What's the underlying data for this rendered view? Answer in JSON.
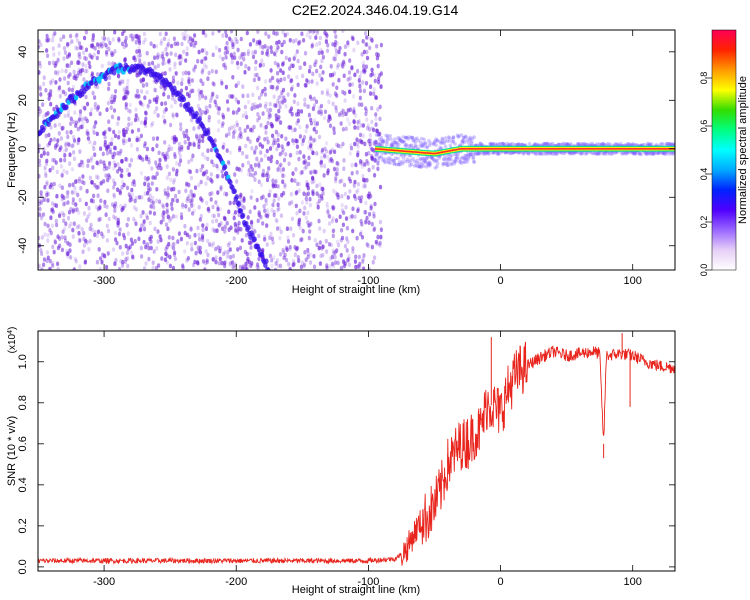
{
  "title": "C2E2.2024.346.04.19.G14",
  "colors": {
    "spectrogram_dots": "#6a1fd8",
    "carrier_core": "#ff2a2a",
    "snr_line": "#e8241c",
    "colorbar": [
      "#ffffff",
      "#e6cff7",
      "#9966ff",
      "#4f00ff",
      "#0022ff",
      "#00aaff",
      "#00ffff",
      "#00ff80",
      "#33dd00",
      "#ffff00",
      "#ff9900",
      "#ff2200",
      "#ff0055"
    ]
  },
  "chart_data": [
    {
      "type": "heatmap",
      "title": "C2E2.2024.346.04.19.G14",
      "xlabel": "Height of straight line (km)",
      "ylabel": "Frequency (Hz)",
      "xlim": [
        -350,
        132
      ],
      "ylim": [
        -50,
        49
      ],
      "xticks": [
        -300,
        -200,
        -100,
        0,
        100
      ],
      "yticks": [
        -40,
        -20,
        0,
        20,
        40
      ],
      "colorbar": {
        "label": "Normalized spectral amplitude",
        "range": [
          0,
          1
        ],
        "ticks": [
          "0.0",
          "0.2",
          "0.4",
          "0.6",
          "0.8"
        ],
        "tick_values": [
          0,
          0.2,
          0.4,
          0.6,
          0.8
        ]
      },
      "noise_region_x": [
        -350,
        -90
      ],
      "arc_track": {
        "name": "",
        "points": [
          [
            -350,
            7
          ],
          [
            -330,
            18
          ],
          [
            -310,
            27
          ],
          [
            -290,
            33
          ],
          [
            -270,
            33
          ],
          [
            -250,
            26
          ],
          [
            -230,
            13
          ],
          [
            -215,
            0
          ],
          [
            -205,
            -13
          ],
          [
            -195,
            -28
          ],
          [
            -185,
            -40
          ],
          [
            -175,
            -50
          ]
        ]
      },
      "carrier": {
        "name": "",
        "points": [
          [
            -95,
            0
          ],
          [
            -50,
            -2
          ],
          [
            -30,
            0
          ],
          [
            0,
            0
          ],
          [
            60,
            0
          ],
          [
            90,
            0
          ],
          [
            132,
            0
          ]
        ]
      }
    },
    {
      "type": "line",
      "xlabel": "Height of straight line (km)",
      "ylabel": "SNR (10 * v/v)",
      "yscale_label": "(x10",
      "yscale_exponent": "4",
      "xlim": [
        -350,
        132
      ],
      "ylim": [
        -0.02,
        1.15
      ],
      "xticks": [
        -300,
        -200,
        -100,
        0,
        100
      ],
      "yticks": [
        0.0,
        0.2,
        0.4,
        0.6,
        0.8,
        1.0
      ],
      "ytick_labels": [
        "0.0",
        "0.2",
        "0.4",
        "0.6",
        "0.8",
        "1.0"
      ],
      "series": [
        {
          "x": [
            -350,
            -300,
            -250,
            -200,
            -150,
            -100,
            -80,
            -75,
            -70,
            -65,
            -60,
            -55,
            -50,
            -45,
            -40,
            -35,
            -30,
            -25,
            -20,
            -15,
            -10,
            -5,
            0,
            5,
            10,
            15,
            20,
            30,
            40,
            50,
            60,
            70,
            75,
            78,
            80,
            90,
            100,
            110,
            120,
            132
          ],
          "y": [
            0.03,
            0.03,
            0.03,
            0.03,
            0.03,
            0.03,
            0.04,
            0.06,
            0.1,
            0.17,
            0.22,
            0.25,
            0.3,
            0.38,
            0.5,
            0.55,
            0.6,
            0.6,
            0.65,
            0.67,
            0.8,
            0.78,
            0.75,
            0.85,
            0.92,
            0.96,
            0.98,
            1.02,
            1.05,
            1.03,
            1.04,
            1.05,
            1.04,
            0.6,
            1.03,
            1.04,
            1.03,
            1.0,
            0.98,
            0.97
          ]
        }
      ],
      "spikes": [
        [
          -7,
          1.12
        ],
        [
          -25,
          0.72
        ],
        [
          -40,
          0.55
        ],
        [
          78,
          0.53
        ],
        [
          98,
          0.78
        ],
        [
          92,
          1.14
        ]
      ]
    }
  ]
}
